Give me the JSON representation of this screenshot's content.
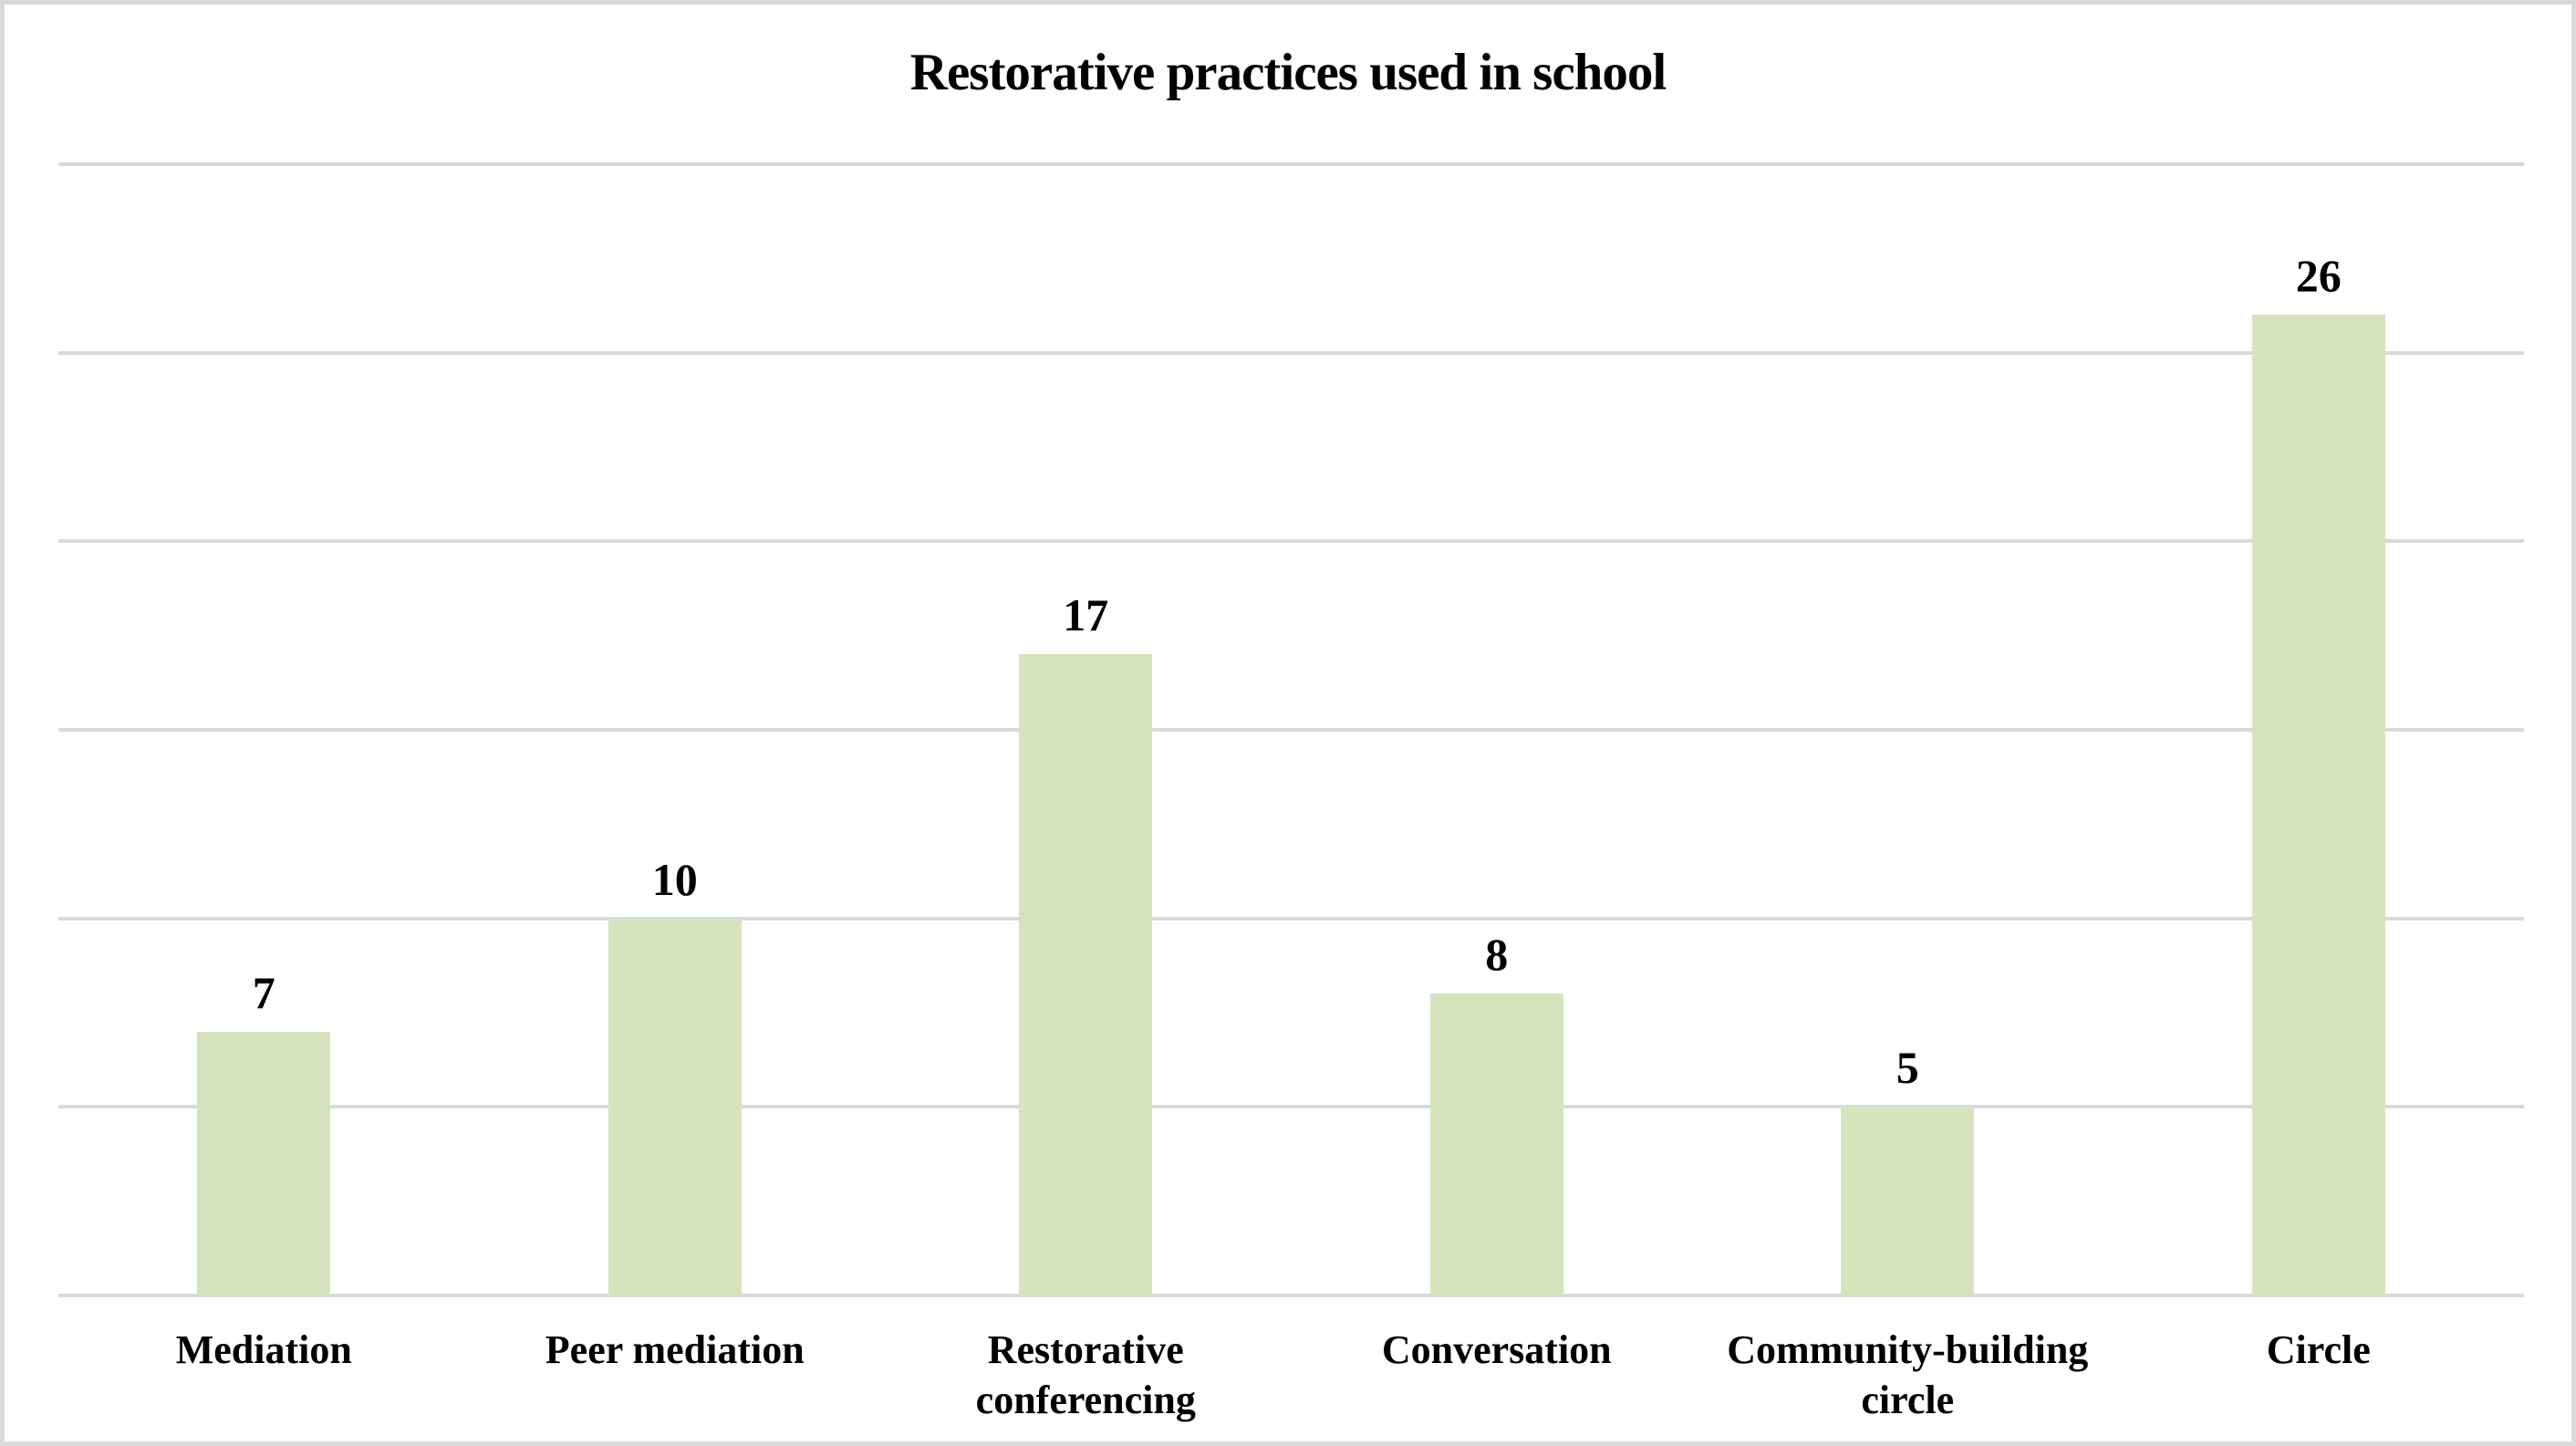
{
  "chart_data": {
    "type": "bar",
    "title": "Restorative practices used in school",
    "categories": [
      "Mediation",
      "Peer mediation",
      "Restorative conferencing",
      "Conversation",
      "Community-building circle",
      "Circle"
    ],
    "values": [
      7,
      10,
      17,
      8,
      5,
      26
    ],
    "xlabel": "",
    "ylabel": "",
    "ylim": [
      0,
      30
    ],
    "gridline_step": 5,
    "grid": true,
    "legend_position": "none",
    "y_tick_labels_shown": false,
    "data_labels_shown": true,
    "colors": {
      "bar_fill": "#d7e3bd",
      "gridline": "#d9d9d9",
      "axis_line": "#d9d9d9",
      "frame_border": "#d9d9d9",
      "text": "#000000",
      "background": "#ffffff"
    }
  }
}
